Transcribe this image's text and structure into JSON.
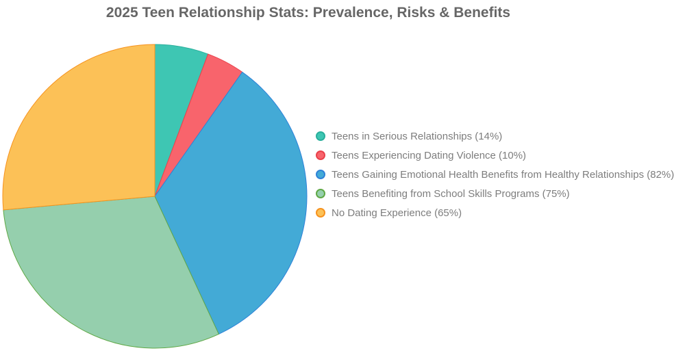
{
  "title": "2025 Teen Relationship Stats: Prevalence, Risks & Benefits",
  "colors": {
    "background": "#ffffff",
    "title_text": "#666666",
    "legend_text": "#7d7d7d"
  },
  "chart_data": {
    "type": "pie",
    "title": "2025 Teen Relationship Stats: Prevalence, Risks & Benefits",
    "legend_position": "right",
    "start_angle_deg": 0,
    "direction": "clockwise",
    "total": 246,
    "slices": [
      {
        "id": "serious-relationships",
        "label": "Teens in Serious Relationships",
        "legend_label": "Teens in Serious Relationships (14%)",
        "value": 14,
        "fill": "#3EC6B3",
        "border": "#2AAF9C"
      },
      {
        "id": "dating-violence",
        "label": "Teens Experiencing Dating Violence",
        "legend_label": "Teens Experiencing Dating Violence (10%)",
        "value": 10,
        "fill": "#F8646C",
        "border": "#E9414B"
      },
      {
        "id": "emotional-health-benefits",
        "label": "Teens Gaining Emotional Health Benefits from Healthy Relationships",
        "legend_label": "Teens Gaining Emotional Health Benefits from Healthy Relationships (82%)",
        "value": 82,
        "fill": "#43AAD6",
        "border": "#2E82D8"
      },
      {
        "id": "school-skills-programs",
        "label": "Teens Benefiting from School Skills Programs",
        "legend_label": "Teens Benefiting from School Skills Programs (75%)",
        "value": 75,
        "fill": "#95CFAD",
        "border": "#5FA845"
      },
      {
        "id": "no-dating-experience",
        "label": "No Dating Experience",
        "legend_label": "No Dating Experience (65%)",
        "value": 65,
        "fill": "#FCC157",
        "border": "#F6921E"
      }
    ]
  }
}
